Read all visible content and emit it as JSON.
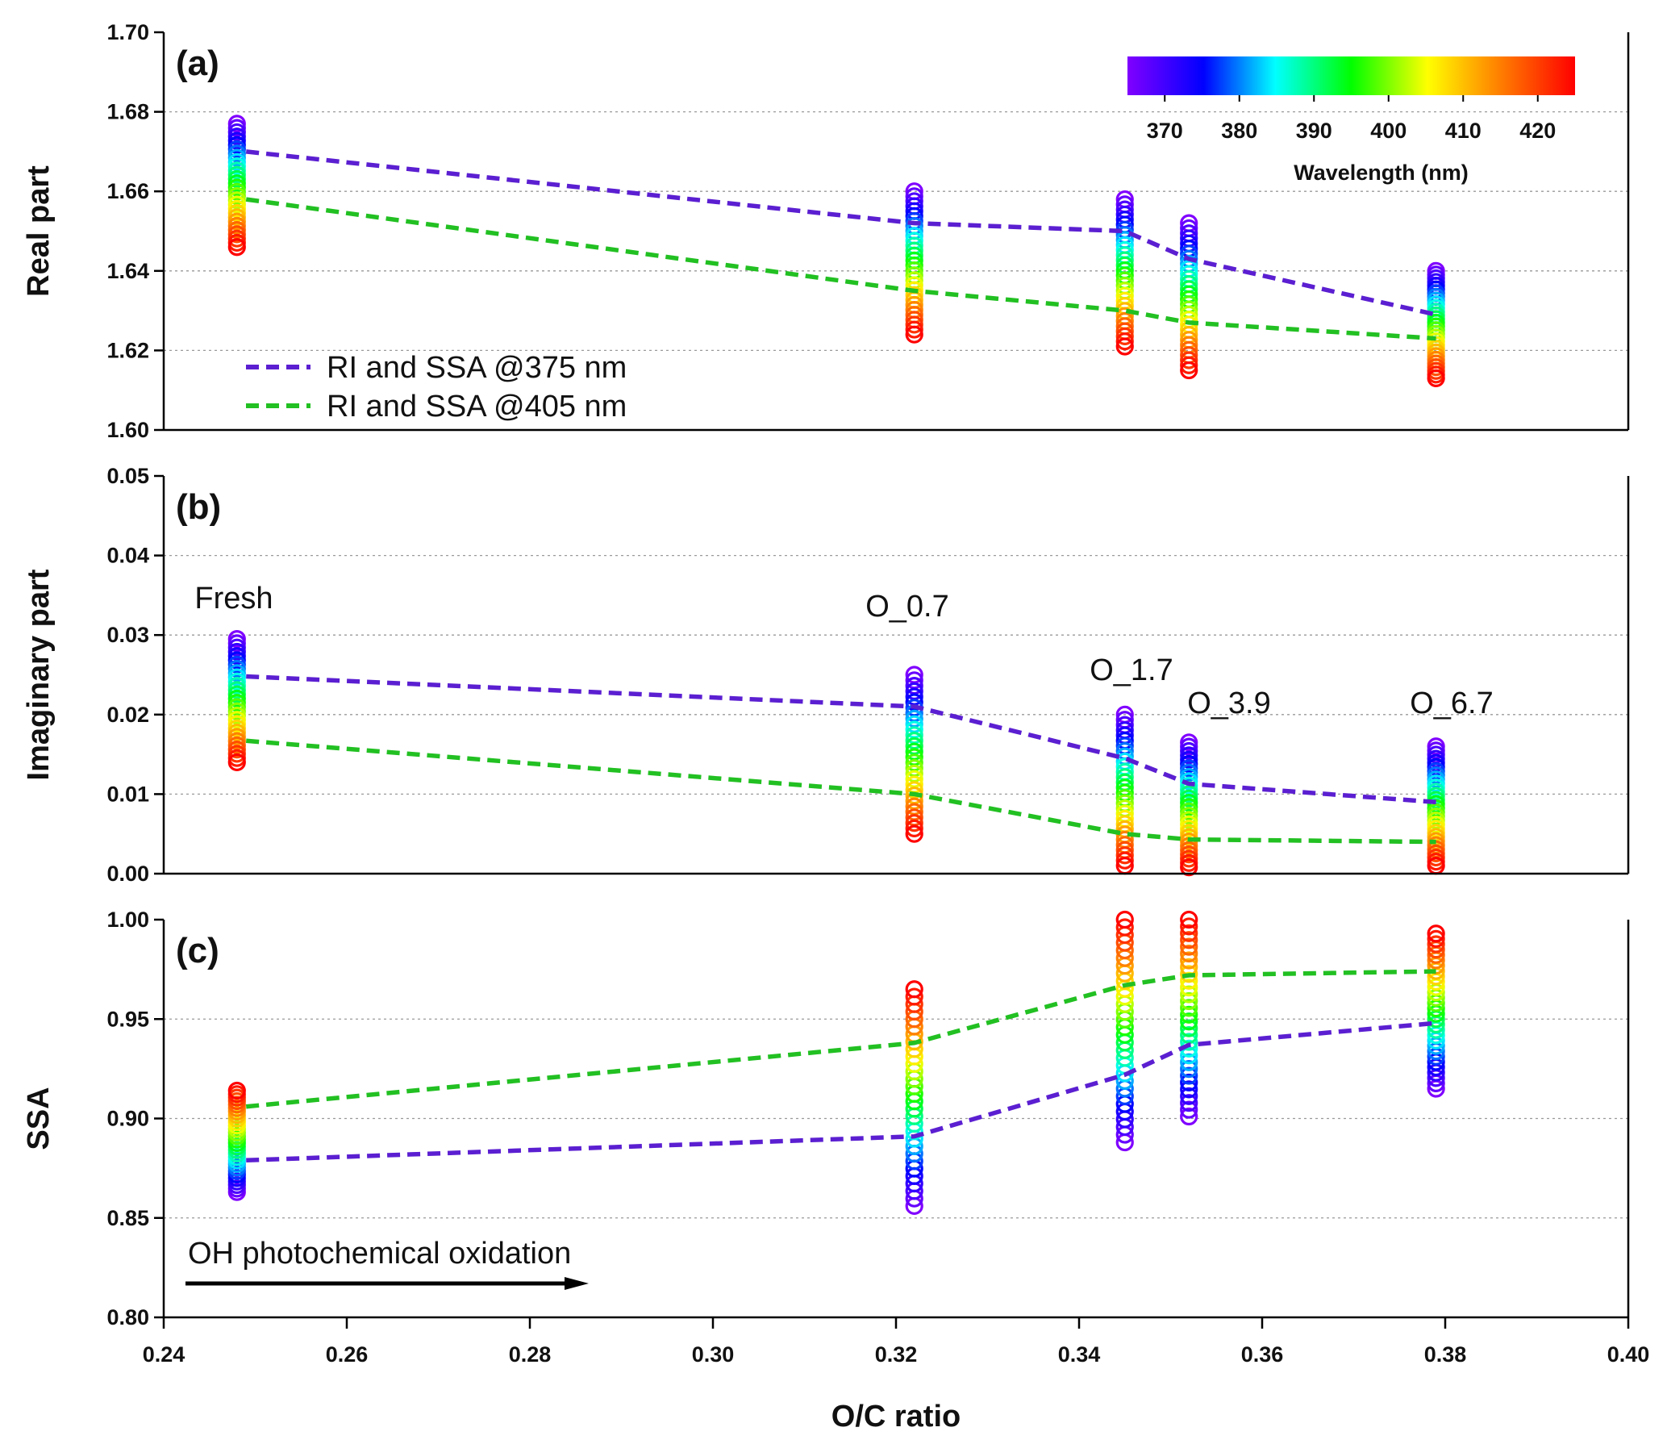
{
  "chart_data": {
    "type": "scatter",
    "x_axis": {
      "title": "O/C ratio",
      "range": [
        0.24,
        0.4
      ],
      "ticks": [
        "0.24",
        "0.26",
        "0.28",
        "0.30",
        "0.32",
        "0.34",
        "0.36",
        "0.38",
        "0.40"
      ]
    },
    "legend": {
      "placement": "lower-left of panel (a)",
      "entries": [
        {
          "label": "RI and SSA @375 nm",
          "color": "#5b1fd1",
          "style": "dashed"
        },
        {
          "label": "RI and SSA @405 nm",
          "color": "#22c022",
          "style": "dashed"
        }
      ]
    },
    "colorbar": {
      "title": "Wavelength (nm)",
      "range": [
        365,
        425
      ],
      "ticks": [
        "370",
        "380",
        "390",
        "400",
        "410",
        "420"
      ],
      "colormap": "rainbow (violet → red)"
    },
    "samples": [
      {
        "label": "Fresh",
        "x": 0.248
      },
      {
        "label": "O_0.7",
        "x": 0.322
      },
      {
        "label": "O_1.7",
        "x": 0.345
      },
      {
        "label": "O_3.9",
        "x": 0.352
      },
      {
        "label": "O_6.7",
        "x": 0.379
      }
    ],
    "panels": [
      {
        "id": "a",
        "panel_label": "(a)",
        "ylabel": "Real part",
        "ylim": [
          1.6,
          1.7
        ],
        "yticks": [
          "1.60",
          "1.62",
          "1.64",
          "1.66",
          "1.68",
          "1.70"
        ],
        "grid": true,
        "point_ranges": [
          [
            1.677,
            1.646
          ],
          [
            1.66,
            1.624
          ],
          [
            1.658,
            1.621
          ],
          [
            1.652,
            1.615
          ],
          [
            1.64,
            1.613
          ]
        ],
        "series": [
          {
            "name": "RI and SSA @375 nm",
            "x": [
              0.249,
              0.322,
              0.345,
              0.352,
              0.379
            ],
            "y": [
              1.67,
              1.652,
              1.65,
              1.643,
              1.629
            ]
          },
          {
            "name": "RI and SSA @405 nm",
            "x": [
              0.249,
              0.322,
              0.345,
              0.352,
              0.379
            ],
            "y": [
              1.658,
              1.635,
              1.63,
              1.627,
              1.623
            ]
          }
        ]
      },
      {
        "id": "b",
        "panel_label": "(b)",
        "ylabel": "Imaginary part",
        "ylim": [
          0.0,
          0.05
        ],
        "yticks": [
          "0.00",
          "0.01",
          "0.02",
          "0.03",
          "0.04",
          "0.05"
        ],
        "grid": true,
        "annotations": [
          "Fresh",
          "O_0.7",
          "O_1.7",
          "O_3.9",
          "O_6.7"
        ],
        "point_ranges": [
          [
            0.0295,
            0.014
          ],
          [
            0.025,
            0.005
          ],
          [
            0.02,
            0.001
          ],
          [
            0.0165,
            0.0008
          ],
          [
            0.016,
            0.001
          ]
        ],
        "series": [
          {
            "name": "RI and SSA @375 nm",
            "x": [
              0.249,
              0.322,
              0.345,
              0.352,
              0.379
            ],
            "y": [
              0.0248,
              0.021,
              0.0145,
              0.0113,
              0.009
            ]
          },
          {
            "name": "RI and SSA @405 nm",
            "x": [
              0.249,
              0.322,
              0.345,
              0.352,
              0.379
            ],
            "y": [
              0.0167,
              0.01,
              0.005,
              0.0043,
              0.004
            ]
          }
        ]
      },
      {
        "id": "c",
        "panel_label": "(c)",
        "ylabel": "SSA",
        "ylim": [
          0.8,
          1.0
        ],
        "yticks": [
          "0.80",
          "0.85",
          "0.90",
          "0.95",
          "1.00"
        ],
        "grid": true,
        "arrow_annotation": "OH photochemical oxidation",
        "point_ranges": [
          [
            0.863,
            0.914
          ],
          [
            0.856,
            0.965
          ],
          [
            0.888,
            1.0
          ],
          [
            0.901,
            1.0
          ],
          [
            0.915,
            0.993
          ]
        ],
        "series": [
          {
            "name": "RI and SSA @375 nm",
            "x": [
              0.249,
              0.322,
              0.345,
              0.352,
              0.379
            ],
            "y": [
              0.879,
              0.891,
              0.922,
              0.937,
              0.948
            ]
          },
          {
            "name": "RI and SSA @405 nm",
            "x": [
              0.249,
              0.322,
              0.345,
              0.352,
              0.379
            ],
            "y": [
              0.906,
              0.938,
              0.967,
              0.972,
              0.974
            ]
          }
        ]
      }
    ]
  }
}
